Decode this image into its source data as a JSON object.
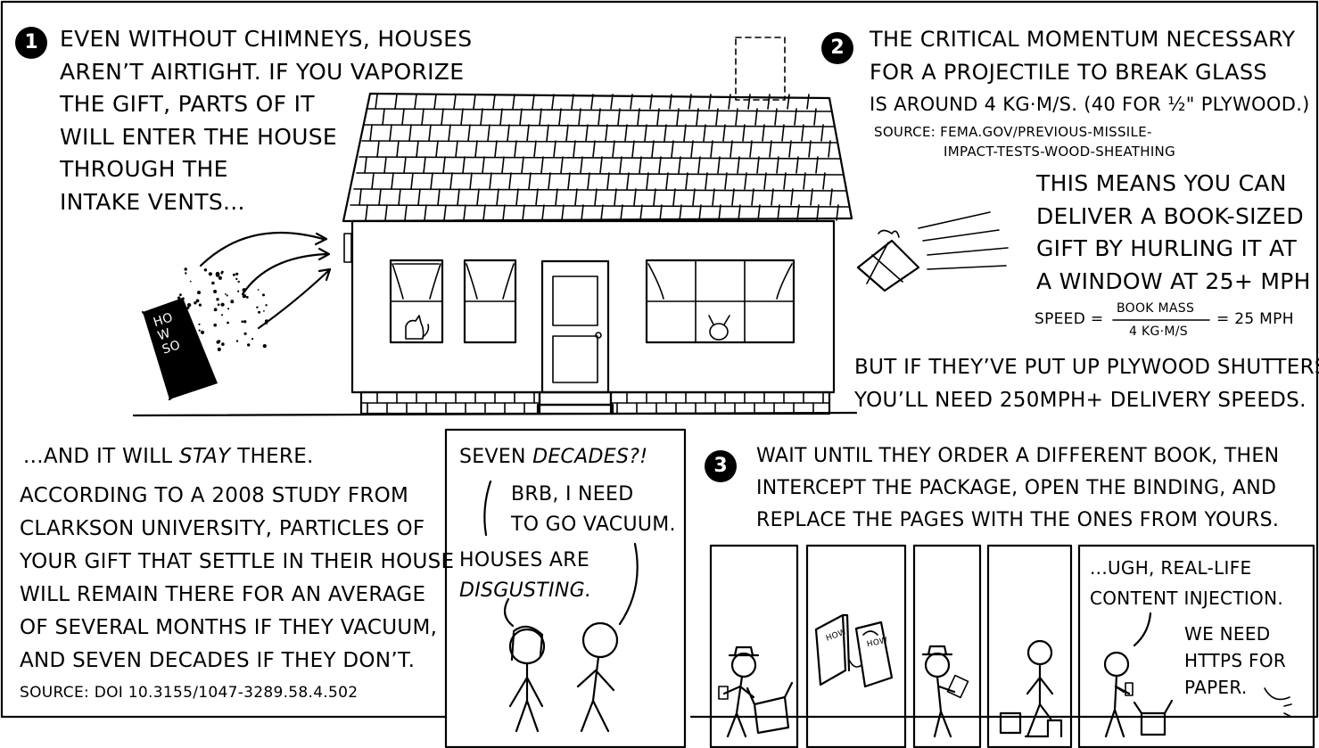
{
  "panel1": {
    "number": "1",
    "caption_lines": [
      "Even without chimneys, houses",
      "aren’t airtight. If you vaporize",
      "the gift, parts of it",
      "will enter the house",
      "through the",
      "intake vents..."
    ],
    "book_cover_lines": [
      "Ho",
      "W",
      "So"
    ]
  },
  "panel2": {
    "number": "2",
    "caption_lines": [
      "The critical momentum necessary",
      "for a projectile to break glass",
      "is around 4 kg·m/s. (40 for ½\" plywood.)"
    ],
    "source_lines": [
      "Source: fema.gov/previous-missile-",
      "impact-tests-wood-sheathing"
    ],
    "deliver_lines": [
      "This means you can",
      "deliver a book-sized",
      "gift by hurling it at",
      "a window at 25+ mph"
    ],
    "formula": {
      "lhs": "Speed =",
      "numerator": "Book mass",
      "denominator": "4 kg·m/s",
      "rhs": "= 25 mph"
    },
    "plywood_lines": [
      "But if they’ve put up plywood shutters,",
      "you’ll need 250mph+ delivery speeds."
    ]
  },
  "panel_stay": {
    "lead_plain": "...And it will ",
    "lead_emph": "stay",
    "lead_tail": " there.",
    "body_lines": [
      "According to a 2008 study from",
      "Clarkson University, particles of",
      "your gift that settle in their house",
      "will remain there for an average",
      "of several months if they vacuum,",
      "and seven decades if they don’t."
    ],
    "source": "Source: DOI 10.3155/1047-3289.58.4.502"
  },
  "panel_dialog": {
    "line1_plain": "Seven ",
    "line1_emph": "decades?!",
    "line2_lines": [
      "BRB, I need",
      "to go vacuum."
    ],
    "line3_plain": "Houses are",
    "line3_emph": "disgusting."
  },
  "panel3": {
    "number": "3",
    "caption_lines": [
      "Wait until they order a different book, then",
      "intercept the package, open the binding, and",
      "replace the pages with the ones from yours."
    ],
    "strip_left_text": "...Ugh, real-life",
    "strip_left_text2": "content injection.",
    "strip_right_lines": [
      "We need",
      "HTTPS for",
      "paper."
    ],
    "mini_book_labels": [
      "How",
      "How"
    ]
  }
}
